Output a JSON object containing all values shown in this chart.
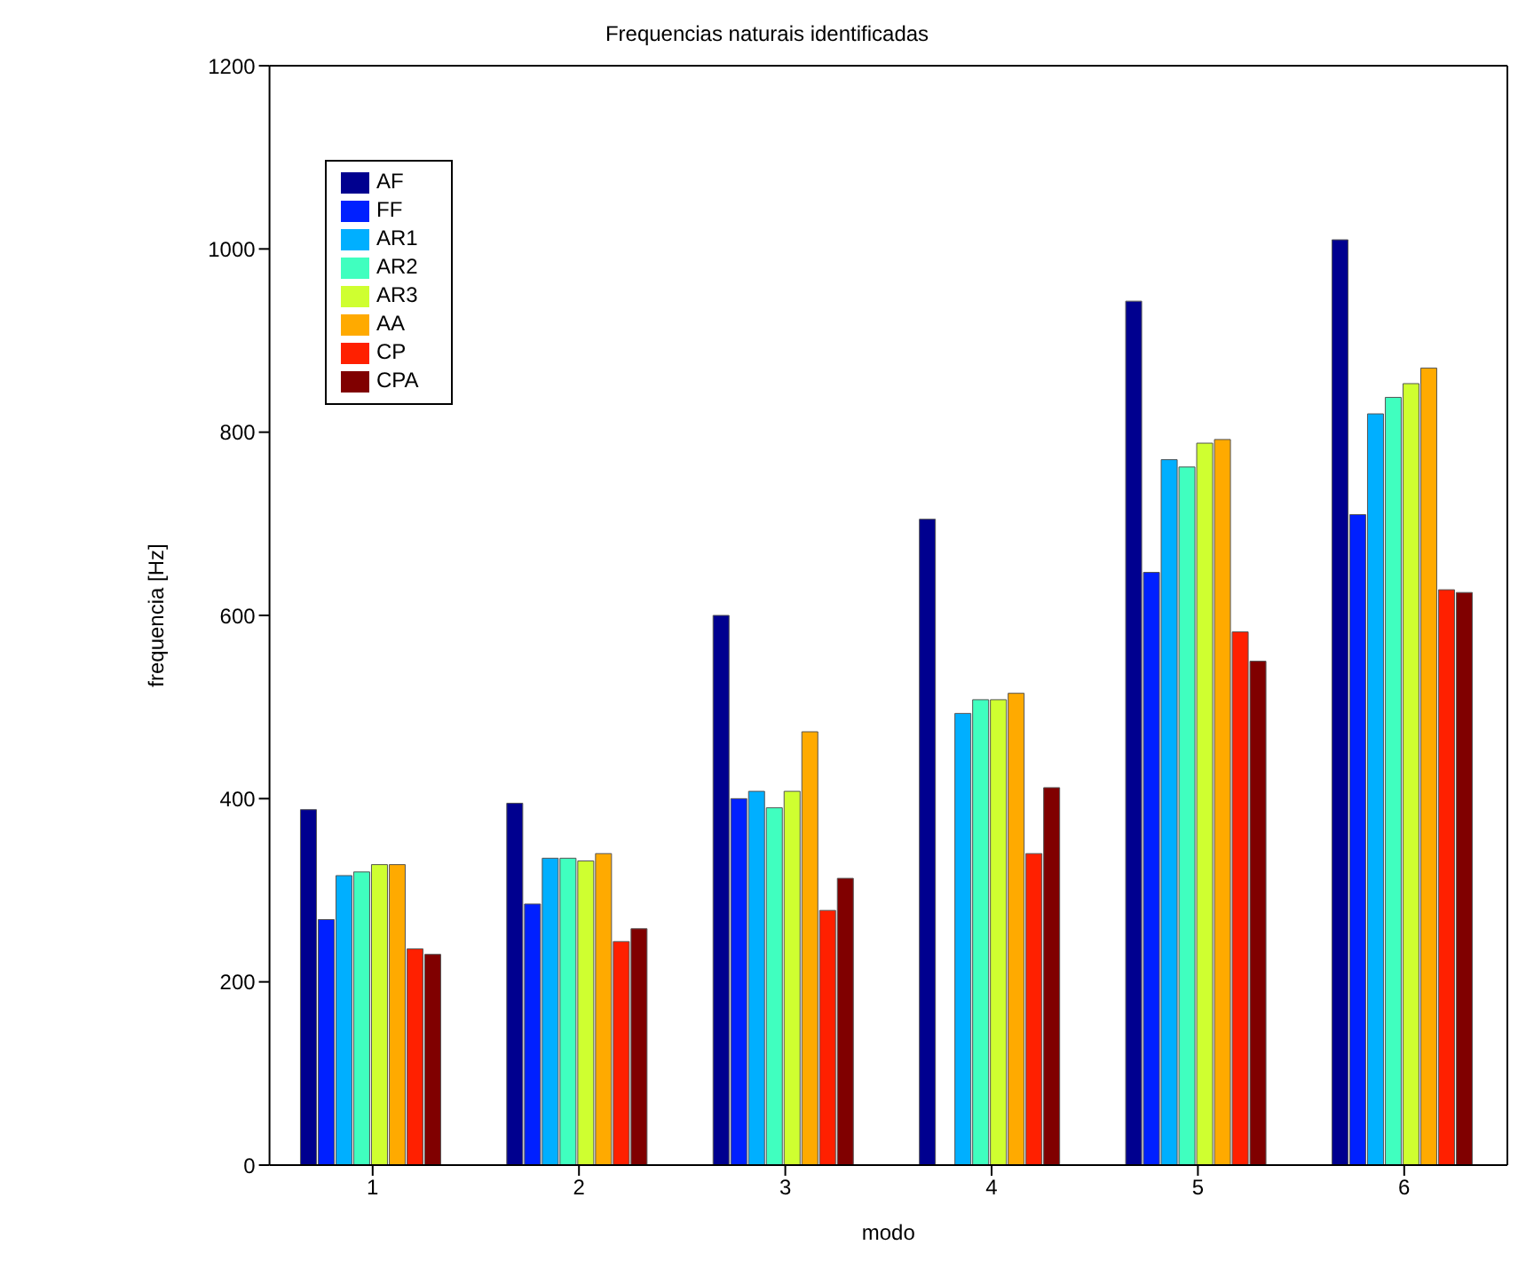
{
  "chart_data": {
    "type": "bar",
    "title": "Frequencias naturais identificadas",
    "xlabel": "modo",
    "ylabel": "frequencia [Hz]",
    "categories": [
      "1",
      "2",
      "3",
      "4",
      "5",
      "6"
    ],
    "series": [
      {
        "name": "AF",
        "color": "#00008f",
        "values": [
          388,
          395,
          600,
          705,
          943,
          1010
        ]
      },
      {
        "name": "FF",
        "color": "#0020ff",
        "values": [
          268,
          285,
          400,
          null,
          647,
          710
        ]
      },
      {
        "name": "AR1",
        "color": "#00afff",
        "values": [
          316,
          335,
          408,
          493,
          770,
          820
        ]
      },
      {
        "name": "AR2",
        "color": "#40ffbf",
        "values": [
          320,
          335,
          390,
          508,
          762,
          838
        ]
      },
      {
        "name": "AR3",
        "color": "#cfff30",
        "values": [
          328,
          332,
          408,
          508,
          788,
          853
        ]
      },
      {
        "name": "AA",
        "color": "#ffaa00",
        "values": [
          328,
          340,
          473,
          515,
          792,
          870
        ]
      },
      {
        "name": "CP",
        "color": "#ff2000",
        "values": [
          236,
          244,
          278,
          340,
          582,
          628
        ]
      },
      {
        "name": "CPA",
        "color": "#800000",
        "values": [
          230,
          258,
          313,
          412,
          550,
          625
        ]
      }
    ],
    "ylim": [
      0,
      1200
    ],
    "yticks": [
      0,
      200,
      400,
      600,
      800,
      1000,
      1200
    ],
    "grid": false,
    "legend": "top left"
  }
}
